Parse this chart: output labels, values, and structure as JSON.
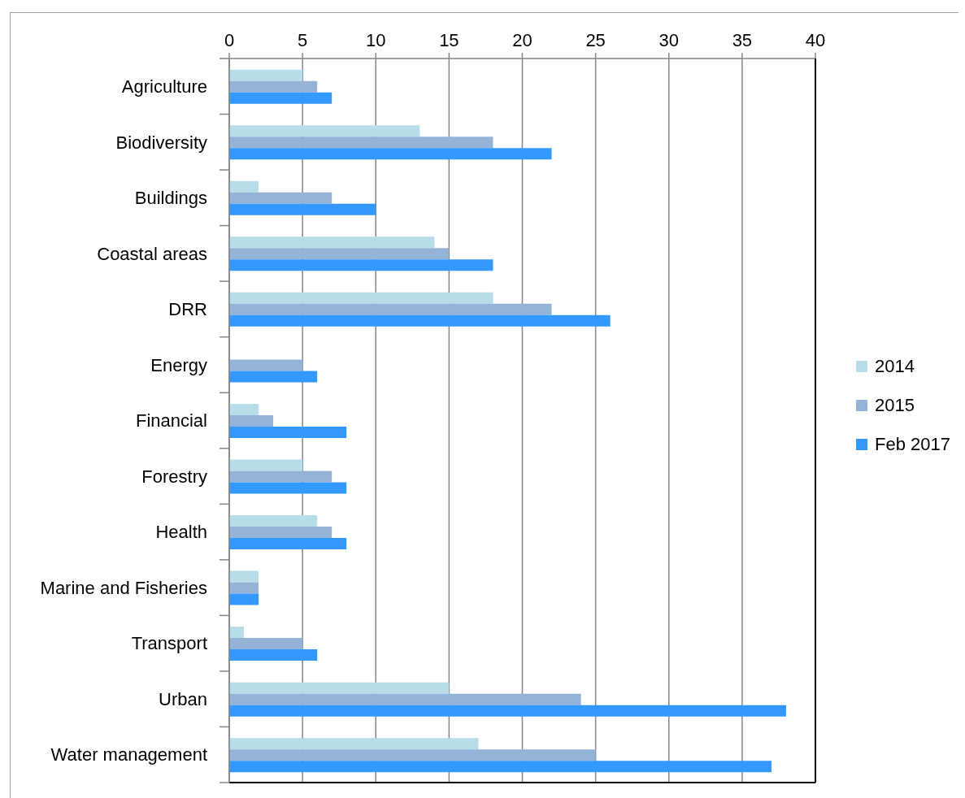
{
  "chart_data": {
    "type": "bar",
    "orientation": "horizontal",
    "categories": [
      "Agriculture",
      "Biodiversity",
      "Buildings",
      "Coastal areas",
      "DRR",
      "Energy",
      "Financial",
      "Forestry",
      "Health",
      "Marine and Fisheries",
      "Transport",
      "Urban",
      "Water management"
    ],
    "series": [
      {
        "name": "2014",
        "color": "#b7dde8",
        "values": [
          5,
          13,
          2,
          14,
          18,
          0,
          2,
          5,
          6,
          2,
          1,
          15,
          17
        ]
      },
      {
        "name": "2015",
        "color": "#95b3d7",
        "values": [
          6,
          18,
          7,
          15,
          22,
          5,
          3,
          7,
          7,
          2,
          5,
          24,
          25
        ]
      },
      {
        "name": "Feb 2017",
        "color": "#3399ff",
        "values": [
          7,
          22,
          10,
          18,
          26,
          6,
          8,
          8,
          8,
          2,
          6,
          38,
          37
        ]
      }
    ],
    "xlim": [
      0,
      40
    ],
    "xticks": [
      0,
      5,
      10,
      15,
      20,
      25,
      30,
      35,
      40
    ],
    "grid": "x",
    "legend": "right"
  }
}
